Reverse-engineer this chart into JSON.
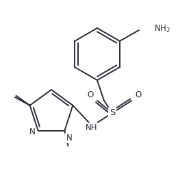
{
  "bg_color": "#ffffff",
  "line_color": "#2a2a3a",
  "text_color": "#2a2a3a",
  "figsize": [
    2.6,
    2.54
  ],
  "dpi": 100,
  "bond_lw": 1.4,
  "font_size": 8.5,
  "xlim": [
    0,
    260
  ],
  "ylim": [
    0,
    254
  ]
}
